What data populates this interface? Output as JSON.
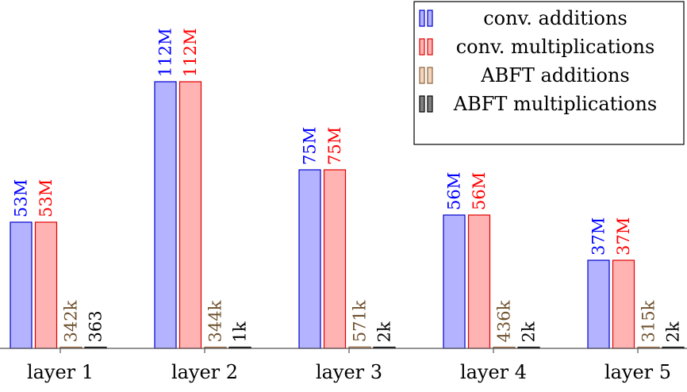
{
  "chart_data": {
    "type": "bar",
    "title": "",
    "xlabel": "",
    "ylabel": "",
    "categories": [
      "layer 1",
      "layer 2",
      "layer 3",
      "layer 4",
      "layer 5"
    ],
    "series": [
      {
        "name": "conv. additions",
        "values": [
          53000000,
          112000000,
          75000000,
          56000000,
          37000000
        ],
        "labels": [
          "53M",
          "112M",
          "75M",
          "56M",
          "37M"
        ],
        "color": "#b3b3ff",
        "edge": "#0000cc",
        "label_color": "#0000ff"
      },
      {
        "name": "conv. multiplications",
        "values": [
          53000000,
          112000000,
          75000000,
          56000000,
          37000000
        ],
        "labels": [
          "53M",
          "112M",
          "75M",
          "56M",
          "37M"
        ],
        "color": "#ffb3b3",
        "edge": "#e00000",
        "label_color": "#ff0000"
      },
      {
        "name": "ABFT additions",
        "values": [
          342000,
          344000,
          571000,
          436000,
          315000
        ],
        "labels": [
          "342k",
          "344k",
          "571k",
          "436k",
          "315k"
        ],
        "color": "#f2d4bf",
        "edge": "#8c6239",
        "label_color": "#6e4f2b"
      },
      {
        "name": "ABFT multiplications",
        "values": [
          363,
          1000,
          2000,
          2000,
          2000
        ],
        "labels": [
          "363",
          "1k",
          "2k",
          "2k",
          "2k"
        ],
        "color": "#808080",
        "edge": "#000000",
        "label_color": "#000000"
      }
    ],
    "ylim": [
      0,
      112000000
    ],
    "grid": false,
    "legend_position": "top-right"
  }
}
